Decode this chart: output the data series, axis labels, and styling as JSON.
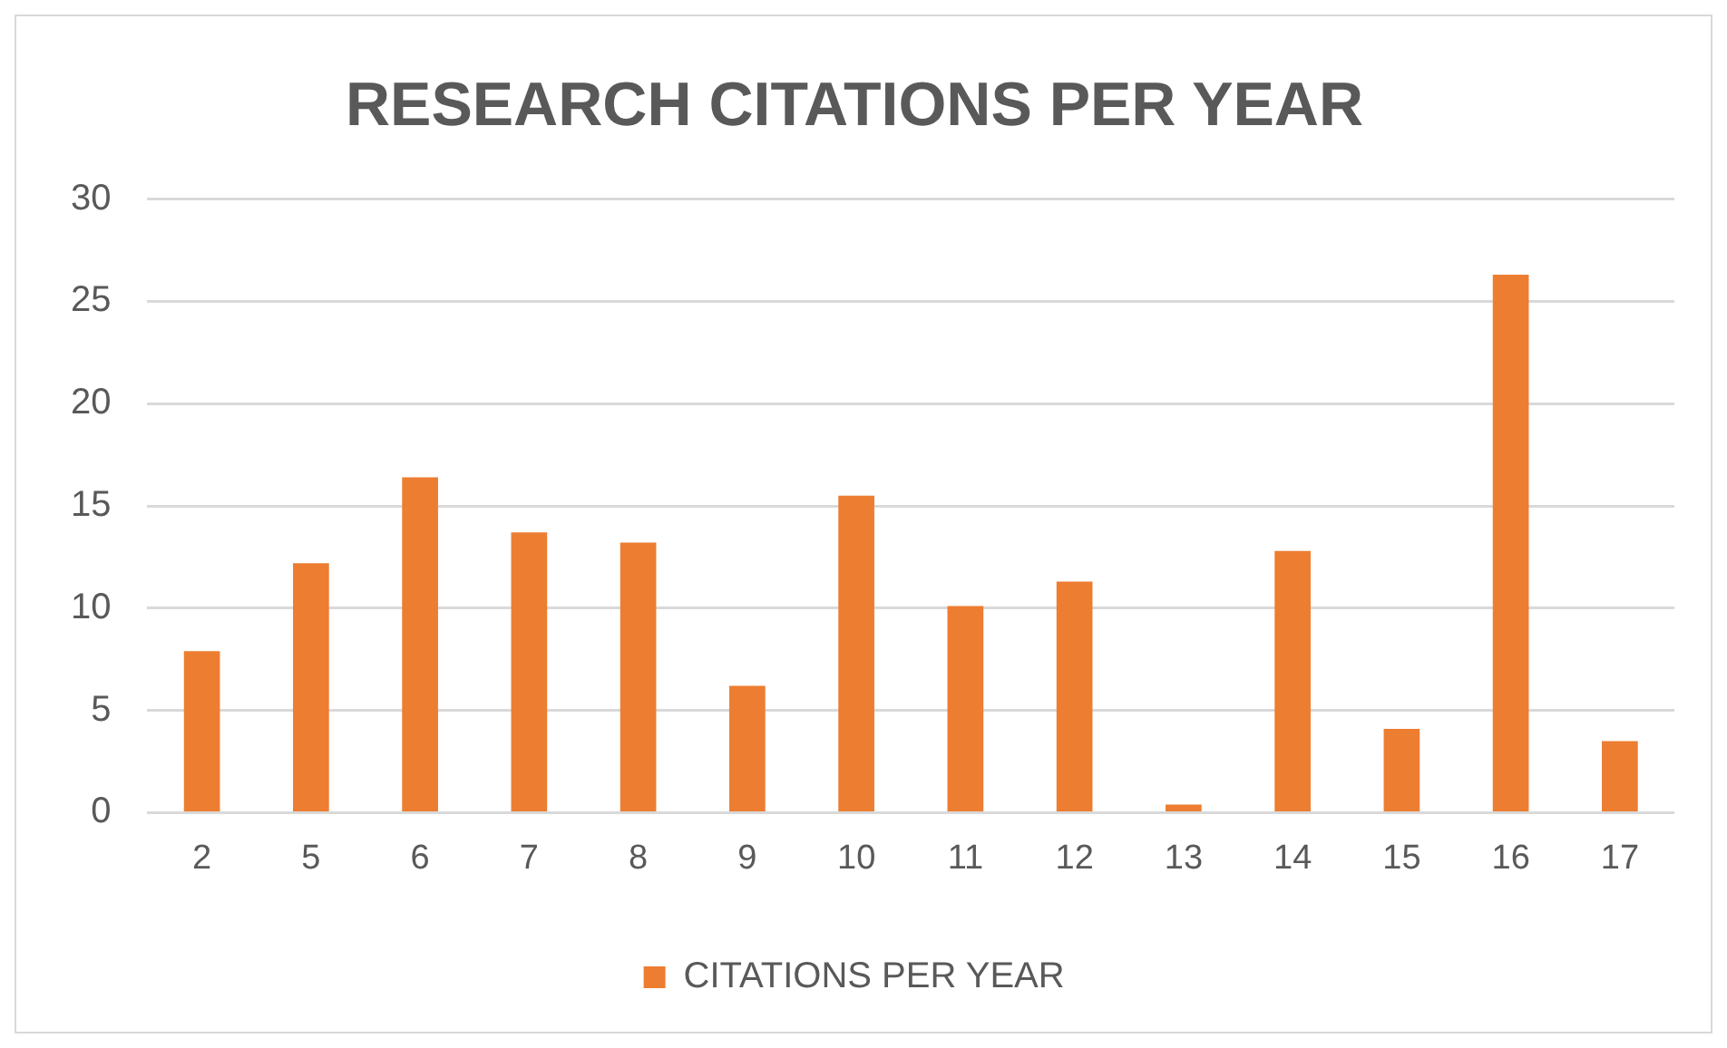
{
  "chart_data": {
    "type": "bar",
    "title": "RESEARCH CITATIONS PER YEAR",
    "categories": [
      "2",
      "5",
      "6",
      "7",
      "8",
      "9",
      "10",
      "11",
      "12",
      "13",
      "14",
      "15",
      "16",
      "17"
    ],
    "series": [
      {
        "name": "CITATIONS PER YEAR",
        "color": "#ed7d31",
        "values": [
          7.9,
          12.2,
          16.4,
          13.7,
          13.2,
          6.2,
          15.5,
          10.1,
          11.3,
          0.4,
          12.8,
          4.1,
          26.3,
          3.5
        ]
      }
    ],
    "ylim": [
      0,
      30
    ],
    "yticks": [
      0,
      5,
      10,
      15,
      20,
      25,
      30
    ],
    "grid": "y",
    "legend": "bottom"
  }
}
